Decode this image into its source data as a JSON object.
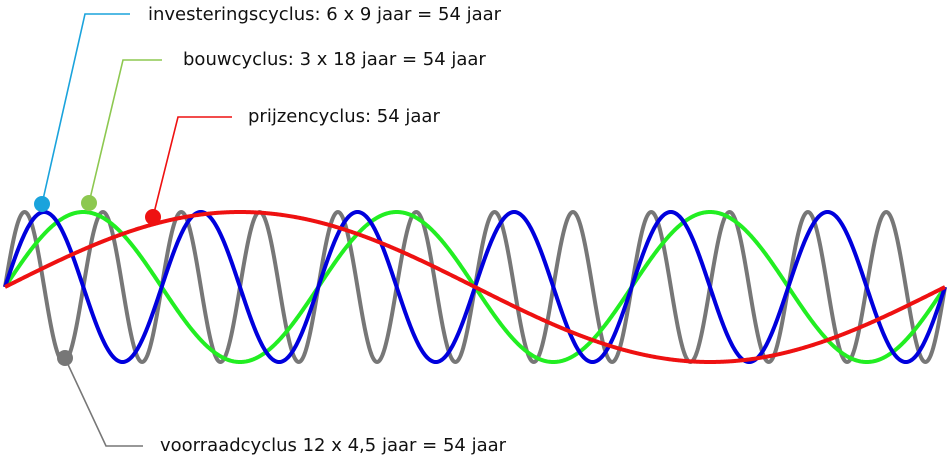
{
  "labels": [
    {
      "text": "investeringscyclus: 6 x 9 jaar = 54 jaar"
    },
    {
      "text": "bouwcyclus: 3 x 18 jaar = 54 jaar"
    },
    {
      "text": "prijzencyclus: 54 jaar"
    },
    {
      "text": "voorraadcyclus 12 x 4,5 jaar = 54 jaar"
    }
  ]
}
